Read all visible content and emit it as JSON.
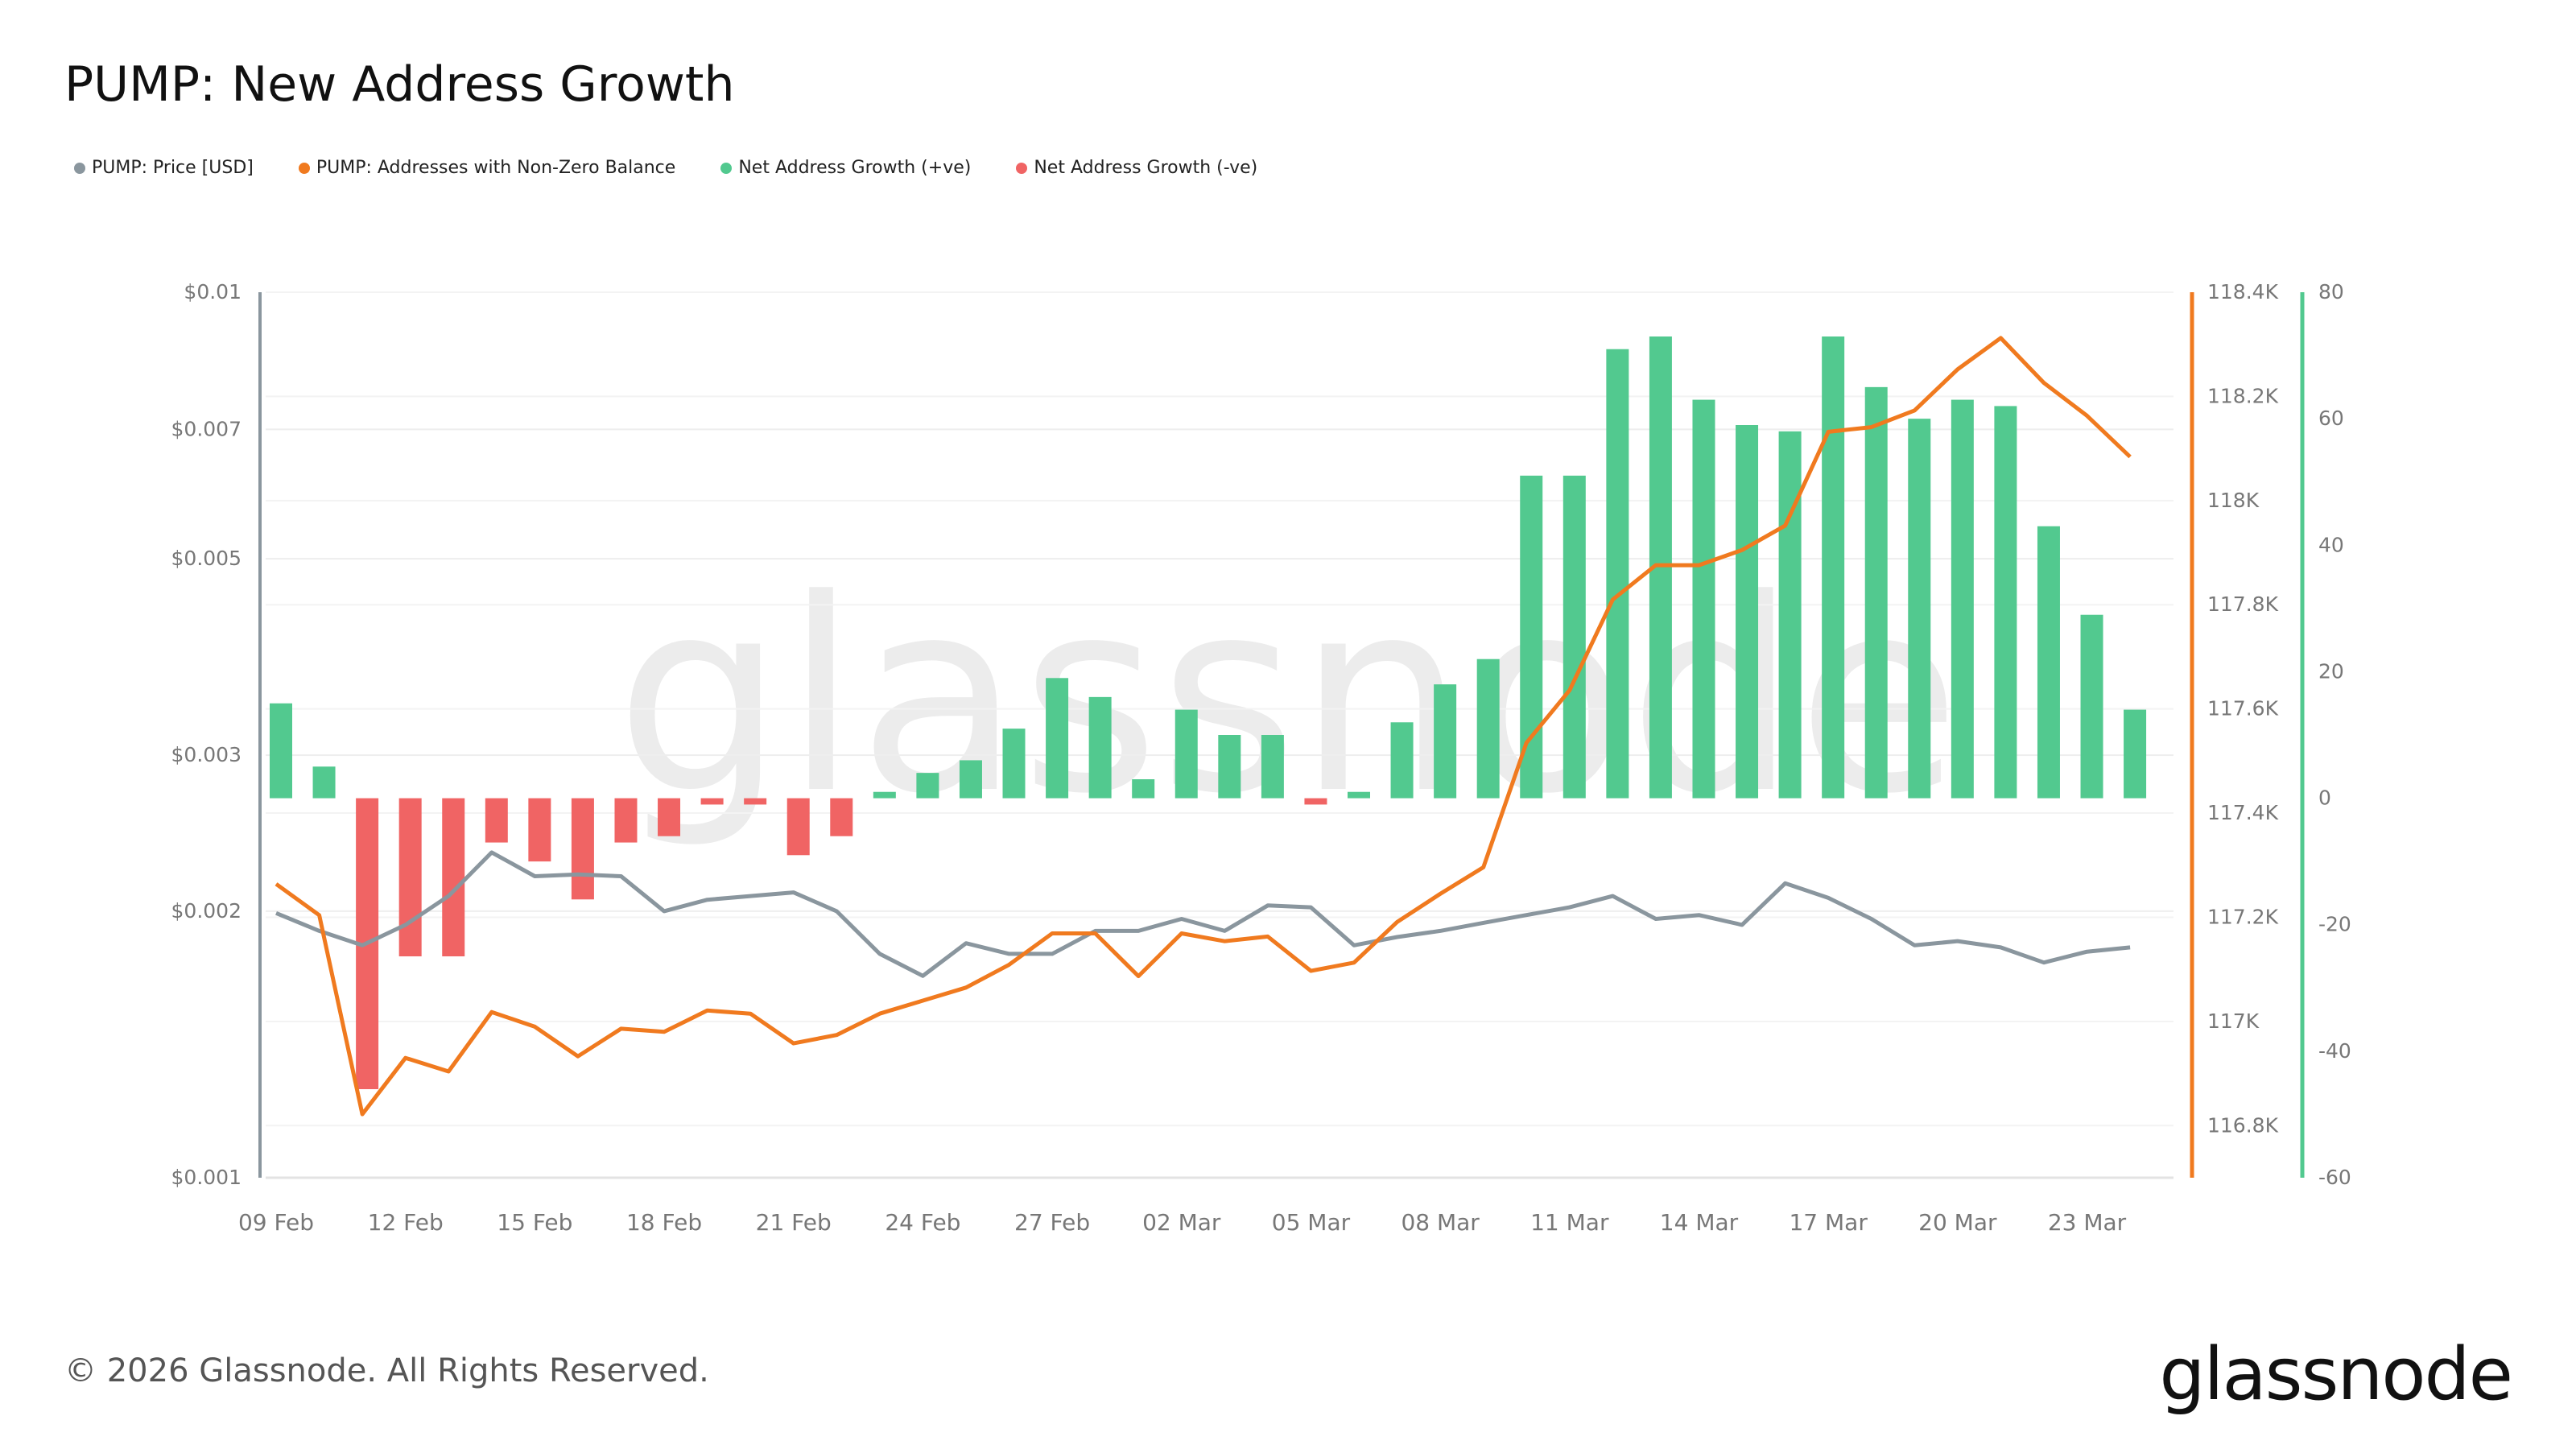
{
  "title": "PUMP: New Address Growth",
  "footer": "© 2026 Glassnode. All Rights Reserved.",
  "logo_text": "glassnode",
  "watermark": "glassnode",
  "legend": [
    {
      "label": "PUMP: Price [USD]",
      "color": "#8a969e"
    },
    {
      "label": "PUMP: Addresses with Non-Zero Balance",
      "color": "#f07a1f"
    },
    {
      "label": "Net Address Growth (+ve)",
      "color": "#52c98f"
    },
    {
      "label": "Net Address Growth (-ve)",
      "color": "#f06464"
    }
  ],
  "chart_data": {
    "type": "bar+line",
    "title": "PUMP: New Address Growth",
    "grid": true,
    "legend_position": "top-left",
    "dates": [
      "09 Feb",
      "10 Feb",
      "11 Feb",
      "12 Feb",
      "13 Feb",
      "14 Feb",
      "15 Feb",
      "16 Feb",
      "17 Feb",
      "18 Feb",
      "19 Feb",
      "20 Feb",
      "21 Feb",
      "22 Feb",
      "23 Feb",
      "24 Feb",
      "25 Feb",
      "26 Feb",
      "27 Feb",
      "28 Feb",
      "01 Mar",
      "02 Mar",
      "03 Mar",
      "04 Mar",
      "05 Mar",
      "06 Mar",
      "07 Mar",
      "08 Mar",
      "09 Mar",
      "10 Mar",
      "11 Mar",
      "12 Mar",
      "13 Mar",
      "14 Mar",
      "15 Mar",
      "16 Mar",
      "17 Mar",
      "18 Mar",
      "19 Mar",
      "20 Mar",
      "21 Mar",
      "22 Mar",
      "23 Mar",
      "24 Mar"
    ],
    "x_tick_labels": [
      "09 Feb",
      "12 Feb",
      "15 Feb",
      "18 Feb",
      "21 Feb",
      "24 Feb",
      "27 Feb",
      "02 Mar",
      "05 Mar",
      "08 Mar",
      "11 Mar",
      "14 Mar",
      "17 Mar",
      "20 Mar",
      "23 Mar"
    ],
    "axes": {
      "price": {
        "scale": "log",
        "range": [
          0.001,
          0.01
        ],
        "ticks": [
          "$0.01",
          "$0.007",
          "$0.005",
          "$0.003",
          "$0.002",
          "$0.001"
        ],
        "tick_values": [
          0.01,
          0.007,
          0.005,
          0.003,
          0.002,
          0.001
        ],
        "color": "#8a969e"
      },
      "addresses": {
        "scale": "linear",
        "range": [
          116700,
          118400
        ],
        "ticks": [
          "118.4K",
          "118.2K",
          "118K",
          "117.8K",
          "117.6K",
          "117.4K",
          "117.2K",
          "117K",
          "116.8K"
        ],
        "tick_values": [
          118400,
          118200,
          118000,
          117800,
          117600,
          117400,
          117200,
          117000,
          116800
        ],
        "color": "#f07a1f"
      },
      "growth": {
        "scale": "linear",
        "range": [
          -60,
          80
        ],
        "ticks": [
          "80",
          "60",
          "40",
          "20",
          "0",
          "-20",
          "-40",
          "-60"
        ],
        "tick_values": [
          80,
          60,
          40,
          20,
          0,
          -20,
          -40,
          -60
        ],
        "color": "#52c98f"
      }
    },
    "series": [
      {
        "name": "PUMP: Price [USD]",
        "type": "line",
        "axis": "price",
        "color": "#8a969e",
        "values": [
          0.00199,
          0.0019,
          0.00183,
          0.00193,
          0.00208,
          0.00233,
          0.00219,
          0.0022,
          0.00219,
          0.002,
          0.00206,
          0.00208,
          0.0021,
          0.002,
          0.00179,
          0.00169,
          0.00184,
          0.00179,
          0.00179,
          0.0019,
          0.0019,
          0.00196,
          0.0019,
          0.00203,
          0.00202,
          0.00183,
          0.00187,
          0.0019,
          0.00194,
          0.00198,
          0.00202,
          0.00208,
          0.00196,
          0.00198,
          0.00193,
          0.00215,
          0.00207,
          0.00196,
          0.00183,
          0.00185,
          0.00182,
          0.00175,
          0.0018,
          0.00182
        ]
      },
      {
        "name": "PUMP: Addresses with Non-Zero Balance",
        "type": "line",
        "axis": "addresses",
        "color": "#f07a1f",
        "values": [
          117264,
          117204,
          116822,
          116930,
          116904,
          117018,
          116990,
          116933,
          116986,
          116980,
          117021,
          117015,
          116958,
          116974,
          117015,
          117040,
          117065,
          117109,
          117169,
          117169,
          117087,
          117169,
          117154,
          117163,
          117097,
          117113,
          117191,
          117245,
          117296,
          117535,
          117636,
          117810,
          117876,
          117876,
          117905,
          117952,
          118132,
          118141,
          118173,
          118252,
          118312,
          118226,
          118163,
          118084
        ]
      },
      {
        "name": "Net Address Growth",
        "type": "bar",
        "axis": "growth",
        "color_positive": "#52c98f",
        "color_negative": "#f06464",
        "values": [
          15,
          5,
          -46,
          -25,
          -25,
          -7,
          -10,
          -16,
          -7,
          -6,
          -1,
          -1,
          -9,
          -6,
          1,
          4,
          6,
          11,
          19,
          16,
          3,
          14,
          10,
          10,
          -1,
          1,
          12,
          18,
          22,
          51,
          51,
          71,
          73,
          63,
          59,
          58,
          73,
          65,
          60,
          63,
          62,
          43,
          29,
          14
        ]
      }
    ]
  }
}
